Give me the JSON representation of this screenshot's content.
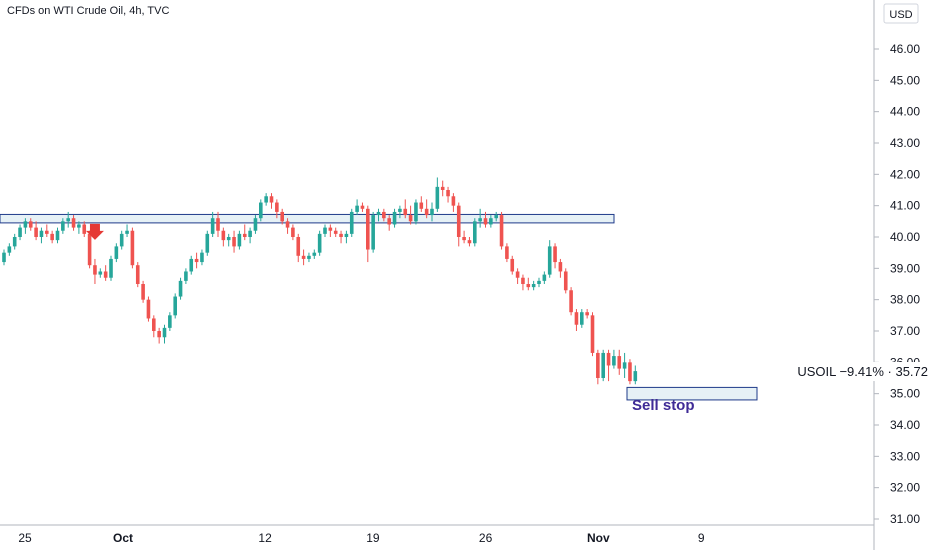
{
  "header": {
    "title": "CFDs on WTI Crude Oil, 4h, TVC",
    "currency_button": "USD"
  },
  "price_tag": {
    "label": "USOIL −9.41% · 35.72"
  },
  "annotations": {
    "sell_stop": "Sell stop"
  },
  "colors": {
    "up": "#26a69a",
    "down": "#ef5350",
    "zone_fill": "#e6f1f6",
    "zone_stroke": "#1e3a8a",
    "sell_stop_text": "#3f2b96",
    "arrow": "#e53935"
  },
  "chart_data": {
    "type": "candlestick",
    "title": "CFDs on WTI Crude Oil, 4h, TVC",
    "currency": "USD",
    "y_axis": {
      "position": "right",
      "ylim": [
        30.8,
        47.4
      ],
      "ticks": [
        "46.00",
        "45.00",
        "44.00",
        "43.00",
        "42.00",
        "41.00",
        "40.00",
        "39.00",
        "38.00",
        "37.00",
        "36.00",
        "35.00",
        "34.00",
        "33.00",
        "32.00",
        "31.00"
      ]
    },
    "x_axis": {
      "labels": [
        {
          "text": "25",
          "major": false,
          "bar": 1
        },
        {
          "text": "Oct",
          "major": true,
          "bar": 21
        },
        {
          "text": "12",
          "major": false,
          "bar": 50
        },
        {
          "text": "19",
          "major": false,
          "bar": 72
        },
        {
          "text": "26",
          "major": false,
          "bar": 95
        },
        {
          "text": "Nov",
          "major": true,
          "bar": 118
        },
        {
          "text": "9",
          "major": false,
          "bar": 139
        }
      ]
    },
    "grid": false,
    "resistance_zone": {
      "low": 40.45,
      "high": 40.72
    },
    "sell_stop_zone": {
      "low": 34.8,
      "high": 35.2,
      "label": "Sell stop"
    },
    "arrow_marker": {
      "bar": 17,
      "price": 40.1,
      "direction": "down"
    },
    "last_price": 35.72,
    "last_change": "−9.41%",
    "symbol": "USOIL",
    "candles": [
      [
        39.2,
        39.6,
        39.1,
        39.5
      ],
      [
        39.5,
        39.8,
        39.4,
        39.7
      ],
      [
        39.7,
        40.1,
        39.6,
        40.0
      ],
      [
        40.0,
        40.4,
        39.9,
        40.3
      ],
      [
        40.3,
        40.6,
        40.1,
        40.5
      ],
      [
        40.5,
        40.6,
        40.2,
        40.3
      ],
      [
        40.3,
        40.5,
        39.9,
        40.0
      ],
      [
        40.0,
        40.3,
        39.8,
        40.2
      ],
      [
        40.2,
        40.4,
        40.0,
        40.1
      ],
      [
        40.1,
        40.2,
        39.8,
        39.9
      ],
      [
        39.9,
        40.3,
        39.8,
        40.2
      ],
      [
        40.2,
        40.6,
        40.1,
        40.5
      ],
      [
        40.5,
        40.8,
        40.3,
        40.6
      ],
      [
        40.6,
        40.7,
        40.2,
        40.3
      ],
      [
        40.3,
        40.5,
        40.1,
        40.4
      ],
      [
        40.4,
        40.5,
        40.0,
        40.1
      ],
      [
        40.1,
        40.2,
        39.0,
        39.1
      ],
      [
        39.1,
        39.3,
        38.5,
        38.8
      ],
      [
        38.8,
        39.0,
        38.7,
        38.9
      ],
      [
        38.9,
        39.1,
        38.6,
        38.7
      ],
      [
        38.7,
        39.4,
        38.6,
        39.3
      ],
      [
        39.3,
        39.8,
        39.2,
        39.7
      ],
      [
        39.7,
        40.2,
        39.6,
        40.1
      ],
      [
        40.1,
        40.4,
        40.0,
        40.2
      ],
      [
        40.2,
        40.3,
        39.0,
        39.1
      ],
      [
        39.1,
        39.2,
        38.4,
        38.5
      ],
      [
        38.5,
        38.6,
        37.9,
        38.0
      ],
      [
        38.0,
        38.1,
        37.3,
        37.4
      ],
      [
        37.4,
        37.5,
        36.8,
        37.0
      ],
      [
        37.0,
        37.1,
        36.6,
        36.8
      ],
      [
        36.8,
        37.2,
        36.6,
        37.1
      ],
      [
        37.1,
        37.6,
        37.0,
        37.5
      ],
      [
        37.5,
        38.2,
        37.4,
        38.1
      ],
      [
        38.1,
        38.7,
        38.0,
        38.6
      ],
      [
        38.6,
        39.0,
        38.5,
        38.9
      ],
      [
        38.9,
        39.4,
        38.8,
        39.3
      ],
      [
        39.3,
        39.5,
        39.0,
        39.2
      ],
      [
        39.2,
        39.6,
        39.1,
        39.5
      ],
      [
        39.5,
        40.2,
        39.4,
        40.1
      ],
      [
        40.1,
        40.8,
        40.0,
        40.6
      ],
      [
        40.6,
        40.8,
        40.0,
        40.2
      ],
      [
        40.2,
        40.3,
        39.7,
        39.9
      ],
      [
        39.9,
        40.1,
        39.7,
        40.0
      ],
      [
        40.0,
        40.2,
        39.5,
        39.7
      ],
      [
        39.7,
        40.2,
        39.6,
        40.1
      ],
      [
        40.1,
        40.4,
        39.9,
        40.0
      ],
      [
        40.0,
        40.3,
        39.8,
        40.2
      ],
      [
        40.2,
        40.7,
        40.1,
        40.6
      ],
      [
        40.6,
        41.2,
        40.5,
        41.1
      ],
      [
        41.1,
        41.4,
        41.0,
        41.3
      ],
      [
        41.3,
        41.4,
        40.9,
        41.1
      ],
      [
        41.1,
        41.2,
        40.6,
        40.8
      ],
      [
        40.8,
        40.9,
        40.4,
        40.5
      ],
      [
        40.5,
        40.6,
        40.1,
        40.3
      ],
      [
        40.3,
        40.4,
        39.9,
        40.0
      ],
      [
        40.0,
        40.1,
        39.2,
        39.4
      ],
      [
        39.4,
        39.6,
        39.1,
        39.3
      ],
      [
        39.3,
        39.5,
        39.2,
        39.4
      ],
      [
        39.4,
        39.6,
        39.3,
        39.5
      ],
      [
        39.5,
        40.2,
        39.4,
        40.1
      ],
      [
        40.1,
        40.4,
        40.0,
        40.3
      ],
      [
        40.3,
        40.4,
        40.0,
        40.2
      ],
      [
        40.2,
        40.3,
        40.0,
        40.1
      ],
      [
        40.1,
        40.2,
        39.8,
        40.0
      ],
      [
        40.0,
        40.2,
        39.8,
        40.1
      ],
      [
        40.1,
        40.9,
        40.0,
        40.8
      ],
      [
        40.8,
        41.2,
        40.7,
        41.0
      ],
      [
        41.0,
        41.1,
        40.8,
        40.9
      ],
      [
        40.9,
        41.0,
        39.2,
        39.6
      ],
      [
        39.6,
        40.8,
        39.5,
        40.7
      ],
      [
        40.7,
        40.9,
        40.5,
        40.8
      ],
      [
        40.8,
        40.9,
        40.5,
        40.6
      ],
      [
        40.6,
        40.7,
        40.2,
        40.4
      ],
      [
        40.4,
        40.9,
        40.3,
        40.8
      ],
      [
        40.8,
        41.0,
        40.6,
        40.9
      ],
      [
        40.9,
        41.2,
        40.6,
        40.7
      ],
      [
        40.7,
        41.0,
        40.4,
        40.5
      ],
      [
        40.5,
        41.2,
        40.4,
        41.1
      ],
      [
        41.1,
        41.3,
        40.8,
        40.9
      ],
      [
        40.9,
        41.2,
        40.6,
        40.7
      ],
      [
        40.7,
        41.1,
        40.5,
        40.9
      ],
      [
        40.9,
        41.9,
        40.8,
        41.6
      ],
      [
        41.6,
        41.8,
        41.3,
        41.5
      ],
      [
        41.5,
        41.6,
        41.1,
        41.3
      ],
      [
        41.3,
        41.4,
        40.8,
        41.0
      ],
      [
        41.0,
        41.1,
        39.7,
        40.0
      ],
      [
        40.0,
        40.2,
        39.8,
        39.9
      ],
      [
        39.9,
        40.0,
        39.7,
        39.8
      ],
      [
        39.8,
        40.6,
        39.7,
        40.5
      ],
      [
        40.5,
        40.9,
        40.3,
        40.6
      ],
      [
        40.6,
        40.8,
        40.3,
        40.4
      ],
      [
        40.4,
        40.7,
        40.3,
        40.6
      ],
      [
        40.6,
        40.8,
        40.5,
        40.7
      ],
      [
        40.7,
        40.8,
        39.6,
        39.7
      ],
      [
        39.7,
        39.8,
        39.2,
        39.3
      ],
      [
        39.3,
        39.4,
        38.8,
        38.9
      ],
      [
        38.9,
        39.0,
        38.5,
        38.7
      ],
      [
        38.7,
        38.8,
        38.3,
        38.5
      ],
      [
        38.5,
        38.7,
        38.3,
        38.4
      ],
      [
        38.4,
        38.6,
        38.3,
        38.5
      ],
      [
        38.5,
        38.7,
        38.4,
        38.6
      ],
      [
        38.6,
        38.9,
        38.5,
        38.8
      ],
      [
        38.8,
        39.9,
        38.7,
        39.7
      ],
      [
        39.7,
        39.8,
        39.0,
        39.2
      ],
      [
        39.2,
        39.3,
        38.7,
        38.9
      ],
      [
        38.9,
        39.0,
        38.2,
        38.3
      ],
      [
        38.3,
        38.4,
        37.5,
        37.6
      ],
      [
        37.6,
        37.7,
        37.0,
        37.2
      ],
      [
        37.2,
        37.7,
        37.1,
        37.6
      ],
      [
        37.6,
        37.7,
        37.4,
        37.5
      ],
      [
        37.5,
        37.6,
        36.2,
        36.3
      ],
      [
        36.3,
        36.4,
        35.3,
        35.5
      ],
      [
        35.5,
        36.4,
        35.4,
        36.3
      ],
      [
        36.3,
        36.4,
        35.4,
        35.9
      ],
      [
        35.9,
        36.4,
        35.8,
        36.2
      ],
      [
        36.2,
        36.4,
        35.6,
        35.8
      ],
      [
        35.8,
        36.3,
        35.5,
        36.0
      ],
      [
        36.0,
        36.1,
        35.3,
        35.4
      ],
      [
        35.4,
        35.9,
        35.3,
        35.72
      ]
    ]
  }
}
